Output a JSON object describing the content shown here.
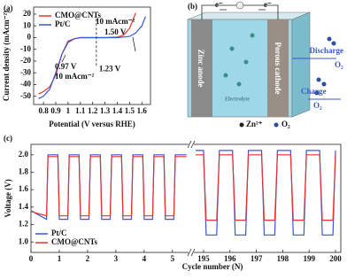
{
  "chart_data": [
    {
      "type": "line",
      "panel_label": "(a)",
      "xlabel": "Potential (V versus RHE)",
      "ylabel": "Current density (mAcm⁻²)",
      "x": [
        0.76,
        0.8,
        0.85,
        0.9,
        0.95,
        1.0,
        1.05,
        1.1,
        1.2,
        1.3,
        1.4,
        1.45,
        1.5,
        1.55,
        1.6,
        1.63
      ],
      "series": [
        {
          "name": "CMO@CNTs",
          "color": "#e8322e",
          "values": [
            -48,
            -46,
            -42,
            -32,
            -14,
            -3,
            -1,
            0,
            0,
            0,
            0.5,
            2,
            8,
            21,
            null,
            null
          ]
        },
        {
          "name": "Pt/C",
          "color": "#3b55d9",
          "values": [
            -52,
            -50,
            -44,
            -30,
            -14,
            -4,
            -1,
            0,
            0,
            0,
            0,
            0.5,
            1,
            4,
            10,
            18
          ]
        }
      ],
      "xlim": [
        0.72,
        1.67
      ],
      "xticks": [
        0.8,
        0.9,
        1.0,
        1.1,
        1.2,
        1.3,
        1.4,
        1.5,
        1.6
      ],
      "ylim": [
        -57,
        26
      ],
      "yticks": [
        20,
        10,
        0,
        -10,
        -20,
        -30,
        -40,
        -50
      ],
      "reference_line": {
        "x": 1.23,
        "label": "1.23 V"
      },
      "annotations": [
        "10 mAcm⁻²",
        "1.50 V",
        "0.97 V",
        "10 mAcm⁻²"
      ]
    },
    {
      "type": "line",
      "panel_label": "(c)",
      "xlabel": "Cycle number (N)",
      "ylabel": "Voltage (V)",
      "x": [
        0,
        0.55,
        0.6,
        0.95,
        1.0,
        1.3,
        1.35,
        1.7,
        1.75,
        2.05,
        2.1,
        2.45,
        2.5,
        2.8,
        2.85,
        3.2,
        3.25,
        3.55,
        3.6,
        3.95,
        4.0,
        4.3,
        4.35,
        4.7,
        4.75,
        5.05,
        5.1,
        5.5,
        194.7,
        195.0,
        195.1,
        195.5,
        195.6,
        196.1,
        196.2,
        196.6,
        196.7,
        197.2,
        197.3,
        197.7,
        197.8,
        198.3,
        198.4,
        198.8,
        198.9,
        199.4,
        199.5,
        199.9,
        200.0
      ],
      "series": [
        {
          "name": "Pt/C",
          "color": "#3b55d9",
          "values": [
            1.36,
            1.26,
            2.0,
            2.0,
            1.26,
            1.26,
            2.0,
            2.0,
            1.26,
            1.26,
            2.0,
            2.0,
            1.26,
            1.26,
            2.0,
            2.0,
            1.26,
            1.26,
            2.0,
            2.0,
            1.26,
            1.26,
            2.0,
            2.0,
            1.26,
            1.26,
            2.0,
            2.0,
            2.05,
            2.05,
            1.08,
            1.08,
            2.05,
            2.05,
            1.08,
            1.08,
            2.05,
            2.05,
            1.08,
            1.08,
            2.05,
            2.05,
            1.08,
            1.08,
            2.05,
            2.05,
            1.08,
            1.08,
            2.05
          ]
        },
        {
          "name": "CMO@CNTs",
          "color": "#e8322e",
          "values": [
            1.35,
            1.3,
            1.98,
            1.98,
            1.3,
            1.3,
            1.98,
            1.98,
            1.3,
            1.3,
            1.98,
            1.98,
            1.3,
            1.3,
            1.98,
            1.98,
            1.3,
            1.3,
            1.98,
            1.98,
            1.3,
            1.3,
            1.98,
            1.98,
            1.3,
            1.3,
            1.98,
            1.98,
            2.0,
            2.0,
            1.25,
            1.25,
            2.0,
            2.0,
            1.25,
            1.25,
            2.0,
            2.0,
            1.25,
            1.25,
            2.0,
            2.0,
            1.25,
            1.25,
            2.0,
            2.0,
            1.25,
            1.25,
            2.0
          ]
        }
      ],
      "xlim": [
        [
          0,
          5.6
        ],
        [
          194.6,
          200.2
        ]
      ],
      "xticks": [
        0,
        1,
        2,
        3,
        4,
        5,
        195,
        196,
        197,
        198,
        199,
        200
      ],
      "ylim": [
        0.88,
        2.12
      ],
      "yticks": [
        {
          "value": 1.0,
          "label": "1.0"
        },
        1.2,
        1.4,
        1.6,
        1.8,
        {
          "value": 2.0,
          "label": "2.0"
        }
      ]
    }
  ],
  "diagram": {
    "panel_label": "(b)",
    "electron_left": "e⁻",
    "electron_right": "e⁻",
    "anode": "Zinc anode",
    "cathode": "Porous cathode",
    "electrolyte": "Electrolyte",
    "discharge": "Discharge",
    "discharge_gas": "O₂",
    "charge": "Charge",
    "charge_gas": "O₂",
    "legend_zn": "Zn²⁺",
    "legend_o2": "O₂"
  }
}
